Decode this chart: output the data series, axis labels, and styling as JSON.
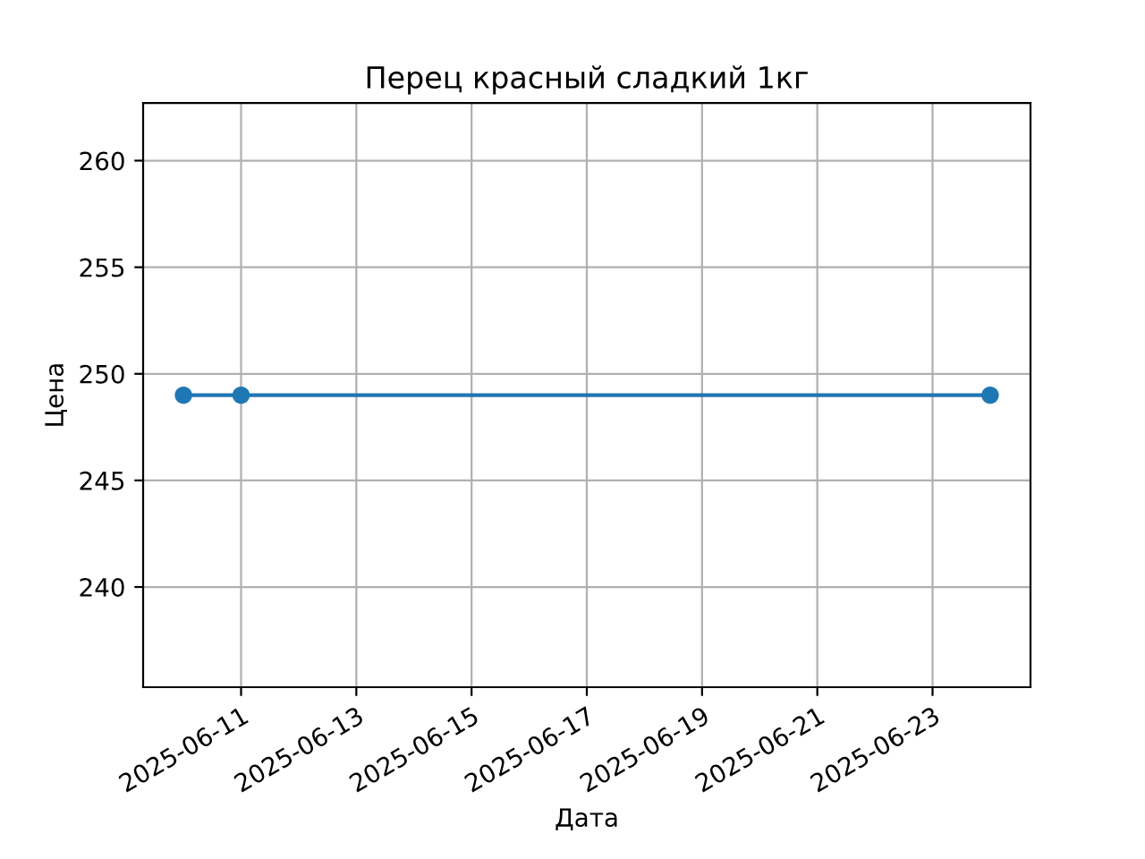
{
  "chart_data": {
    "type": "line",
    "title": "Перец красный сладкий 1кг",
    "xlabel": "Дата",
    "ylabel": "Цена",
    "x": [
      "2025-06-10",
      "2025-06-11",
      "2025-06-24"
    ],
    "series": [
      {
        "color": "#1f77b4",
        "values": [
          249,
          249,
          249
        ]
      }
    ],
    "xlim": [
      "2025-06-09T07:12",
      "2025-06-24T16:48"
    ],
    "xticks": [
      "2025-06-11",
      "2025-06-13",
      "2025-06-15",
      "2025-06-17",
      "2025-06-19",
      "2025-06-21",
      "2025-06-23"
    ],
    "ylim": [
      235.3,
      262.7
    ],
    "yticks": [
      240,
      245,
      250,
      255,
      260
    ],
    "grid": true,
    "marker": "circle",
    "line_style": "solid"
  }
}
